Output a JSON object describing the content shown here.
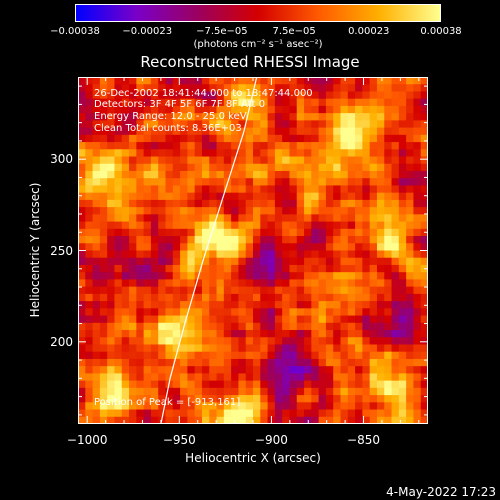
{
  "chart_data": {
    "type": "heatmap",
    "title": "Reconstructed RHESSI Image",
    "xlabel": "Heliocentric X (arcsec)",
    "ylabel": "Heliocentric Y (arcsec)",
    "xlim": [
      -1005,
      -815
    ],
    "ylim": [
      155,
      345
    ],
    "xticks": [
      -1000,
      -950,
      -900,
      -850
    ],
    "xtick_labels": [
      "−1000",
      "−950",
      "−900",
      "−850"
    ],
    "yticks": [
      200,
      250,
      300
    ],
    "ytick_labels": [
      "200",
      "250",
      "300"
    ],
    "colorbar": {
      "range": [
        -0.00038,
        0.00038
      ],
      "tick_values": [
        -0.00038,
        -0.00023,
        -7.5e-05,
        7.5e-05,
        0.00023,
        0.00038
      ],
      "tick_labels": [
        "−0.00038",
        "−0.00023",
        "−7.5e−05",
        "7.5e−05",
        "0.00023",
        "0.00038"
      ],
      "units": "(photons cm⁻² s⁻¹ asec⁻²)",
      "colors": [
        "#0000ff",
        "#7a00c8",
        "#9b0060",
        "#d40000",
        "#ff5a00",
        "#ffb000",
        "#ffff90"
      ]
    },
    "annotations": [
      "26-Dec-2002 18:41:44.000 to 18:47:44.000",
      "Detectors: 3F 4F 5F 6F 7F 8F  Att 0",
      "Energy Range: 12.0 - 25.0 keV",
      "Clean      Total counts: 8.36E+03",
      "Position of Peak = [-913,161]"
    ],
    "limb_points": [
      [
        -960,
        155
      ],
      [
        -955,
        180
      ],
      [
        -947,
        210
      ],
      [
        -937,
        245
      ],
      [
        -926,
        280
      ],
      [
        -915,
        315
      ],
      [
        -908,
        345
      ]
    ],
    "peak": [
      -913,
      161
    ],
    "bright_sources": [
      {
        "x": -930,
        "y": 255,
        "value": 0.00036
      },
      {
        "x": -952,
        "y": 205,
        "value": 0.0003
      },
      {
        "x": -985,
        "y": 172,
        "value": 0.00032
      },
      {
        "x": -852,
        "y": 318,
        "value": 0.0003
      },
      {
        "x": -833,
        "y": 258,
        "value": 0.00028
      },
      {
        "x": -993,
        "y": 292,
        "value": 0.00026
      },
      {
        "x": -914,
        "y": 322,
        "value": 0.00028
      },
      {
        "x": -878,
        "y": 293,
        "value": 0.00024
      },
      {
        "x": -866,
        "y": 225,
        "value": 0.00025
      },
      {
        "x": -918,
        "y": 160,
        "value": 0.0003
      },
      {
        "x": -962,
        "y": 282,
        "value": 0.00022
      },
      {
        "x": -838,
        "y": 178,
        "value": 0.0002
      }
    ],
    "dark_regions": [
      {
        "x": -973,
        "y": 238,
        "value": -0.00022
      },
      {
        "x": -890,
        "y": 182,
        "value": -0.00025
      },
      {
        "x": -904,
        "y": 246,
        "value": -0.00018
      },
      {
        "x": -830,
        "y": 213,
        "value": -0.0002
      },
      {
        "x": -866,
        "y": 338,
        "value": -0.00015
      },
      {
        "x": -990,
        "y": 325,
        "value": -0.00016
      }
    ]
  },
  "datestamp": "4-May-2022 17:23"
}
